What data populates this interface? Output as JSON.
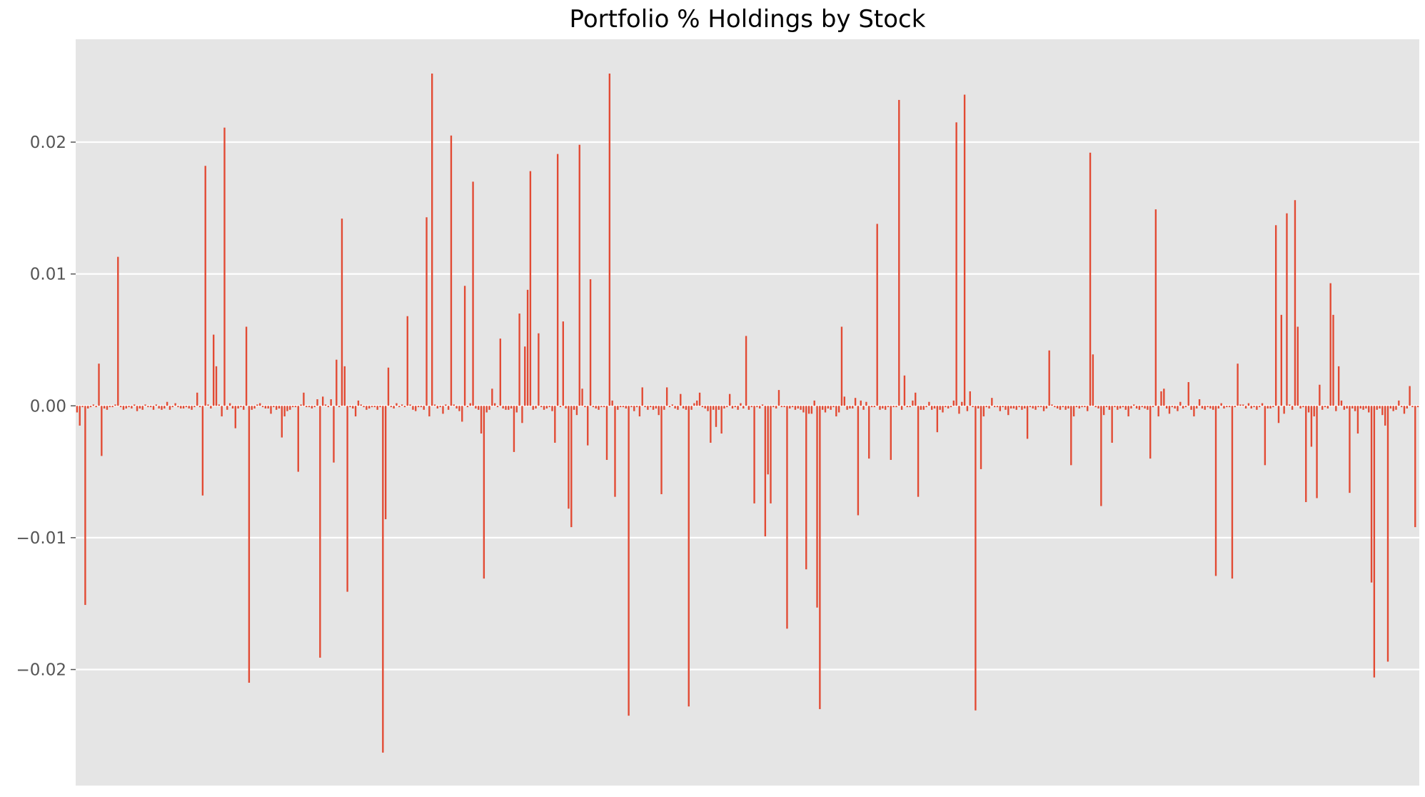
{
  "chart_data": {
    "type": "bar",
    "title": "Portfolio % Holdings by Stock",
    "xlabel": "",
    "ylabel": "",
    "ylim": [
      -0.0288,
      0.0278
    ],
    "yticks": [
      {
        "value": 0.02,
        "label": "0.02"
      },
      {
        "value": 0.01,
        "label": "0.01"
      },
      {
        "value": 0.0,
        "label": "0.00"
      },
      {
        "value": -0.01,
        "label": "−0.01"
      },
      {
        "value": -0.02,
        "label": "−0.02"
      }
    ],
    "grid": true,
    "legend": "none",
    "colors": {
      "bar": "#e24a33",
      "plot_background": "#e5e5e5",
      "grid": "#ffffff",
      "page_background": "#ffffff"
    },
    "series": [
      {
        "values": [
          -0.0005,
          -0.0015,
          -0.0001,
          -0.0151,
          -0.0002,
          -0.0001,
          0.0001,
          -0.0001,
          0.0032,
          -0.0038,
          -0.0002,
          -0.0003,
          -0.0001,
          -0.0001,
          0.0001,
          0.0113,
          -0.0001,
          -0.0003,
          -0.0002,
          -0.0001,
          -0.0002,
          0.0001,
          -0.0004,
          -0.0002,
          -0.0003,
          0.0001,
          -0.0001,
          -0.0001,
          -0.0003,
          0.0001,
          -0.0002,
          -0.0003,
          -0.0002,
          0.0003,
          -0.0003,
          -0.0001,
          0.0002,
          -0.0001,
          -0.0002,
          -0.0002,
          -0.0001,
          -0.0002,
          -0.0003,
          -0.0001,
          0.001,
          -0.0001,
          -0.0068,
          0.0182,
          0.0001,
          -0.0002,
          0.0054,
          0.003,
          0.0001,
          -0.0008,
          0.0211,
          -0.0003,
          0.0002,
          -0.0002,
          -0.0017,
          -0.0002,
          -0.0001,
          -0.0003,
          0.006,
          -0.021,
          -0.0003,
          -0.0002,
          0.0001,
          0.0002,
          -0.0001,
          -0.0002,
          -0.0002,
          -0.0006,
          -0.0001,
          -0.0003,
          -0.0002,
          -0.0024,
          -0.0008,
          -0.0004,
          -0.0003,
          -0.0001,
          -0.0001,
          -0.005,
          0.0001,
          0.001,
          -0.0001,
          -0.0001,
          -0.0002,
          -0.0001,
          0.0005,
          -0.0191,
          0.0007,
          0.0001,
          -0.0001,
          0.0005,
          -0.0043,
          0.0035,
          -0.0001,
          0.0142,
          0.003,
          -0.0141,
          -0.0001,
          -0.0002,
          -0.0008,
          0.0004,
          0.0001,
          -0.0001,
          -0.0003,
          -0.0002,
          -0.0001,
          -0.0001,
          -0.0003,
          -0.0001,
          -0.0263,
          -0.0086,
          0.0029,
          -0.0001,
          -0.0002,
          0.0002,
          -0.0001,
          0.0001,
          -0.0001,
          0.0068,
          0.0001,
          -0.0003,
          -0.0004,
          -0.0001,
          -0.0001,
          -0.0003,
          0.0143,
          -0.0008,
          0.0252,
          0.0001,
          -0.0002,
          -0.0001,
          -0.0006,
          0.0001,
          -0.0003,
          0.0205,
          0.0001,
          -0.0002,
          -0.0004,
          -0.0012,
          0.0091,
          -0.0001,
          0.0002,
          0.017,
          -0.0002,
          -0.0003,
          -0.0021,
          -0.0131,
          -0.0005,
          -0.0003,
          0.0013,
          0.0002,
          -0.0001,
          0.0051,
          -0.0002,
          -0.0003,
          -0.0003,
          -0.0002,
          -0.0035,
          -0.0005,
          0.007,
          -0.0013,
          0.0045,
          0.0088,
          0.0178,
          -0.0003,
          -0.0002,
          0.0055,
          -0.0001,
          -0.0003,
          -0.0002,
          -0.0001,
          -0.0004,
          -0.0028,
          0.0191,
          -0.0001,
          0.0064,
          -0.0002,
          -0.0078,
          -0.0092,
          -0.0003,
          -0.0007,
          0.0198,
          0.0013,
          -0.0001,
          -0.003,
          0.0096,
          -0.0001,
          -0.0002,
          -0.0003,
          -0.0001,
          -0.0001,
          -0.0041,
          0.0252,
          0.0004,
          -0.0069,
          -0.0003,
          -0.0001,
          -0.0001,
          -0.0002,
          -0.0235,
          -0.0001,
          -0.0004,
          -0.0001,
          -0.0008,
          0.0014,
          -0.0001,
          -0.0003,
          -0.0001,
          -0.0003,
          -0.0002,
          -0.0007,
          -0.0067,
          -0.0003,
          0.0014,
          -0.0001,
          0.0001,
          -0.0002,
          -0.0003,
          0.0009,
          -0.0002,
          -0.0003,
          -0.0228,
          -0.0003,
          0.0002,
          0.0004,
          0.001,
          -0.0001,
          -0.0002,
          -0.0004,
          -0.0028,
          -0.0003,
          -0.0016,
          -0.0003,
          -0.0021,
          -0.0002,
          -0.0001,
          0.0009,
          -0.0002,
          -0.0001,
          -0.0003,
          0.0002,
          -0.0002,
          0.0053,
          -0.0003,
          -0.0001,
          -0.0074,
          -0.0001,
          -0.0002,
          0.0001,
          -0.0099,
          -0.0052,
          -0.0074,
          -0.0001,
          -0.0002,
          0.0012,
          -0.0001,
          -0.0001,
          -0.0169,
          -0.0002,
          -0.0001,
          -0.0003,
          -0.0002,
          -0.0003,
          -0.0005,
          -0.0124,
          -0.0006,
          -0.0006,
          0.0004,
          -0.0153,
          -0.023,
          -0.0003,
          -0.0005,
          -0.0002,
          -0.0003,
          -0.0001,
          -0.0008,
          -0.0005,
          0.006,
          0.0007,
          -0.0003,
          -0.0002,
          -0.0002,
          0.0006,
          -0.0083,
          0.0004,
          -0.0003,
          0.0003,
          -0.004,
          -0.0001,
          -0.0001,
          0.0138,
          -0.0003,
          -0.0002,
          -0.0003,
          -0.0001,
          -0.0041,
          -0.0001,
          -0.0001,
          0.0232,
          -0.0003,
          0.0023,
          -0.0001,
          -0.0001,
          0.0004,
          0.001,
          -0.0069,
          -0.0003,
          -0.0003,
          -0.0001,
          0.0003,
          -0.0003,
          -0.0002,
          -0.002,
          -0.0003,
          -0.0005,
          -0.0001,
          -0.0002,
          -0.0001,
          0.0004,
          0.0215,
          -0.0006,
          0.0003,
          0.0236,
          -0.0004,
          0.0011,
          -0.0001,
          -0.0231,
          -0.0002,
          -0.0048,
          -0.0008,
          -0.0001,
          -0.0002,
          0.0006,
          -0.0001,
          -0.0001,
          -0.0004,
          -0.0001,
          -0.0003,
          -0.0007,
          -0.0002,
          -0.0002,
          -0.0003,
          -0.0001,
          -0.0003,
          -0.0002,
          -0.0025,
          -0.0001,
          -0.0002,
          -0.0003,
          -0.0001,
          -0.0001,
          -0.0004,
          -0.0002,
          0.0042,
          0.0001,
          -0.0001,
          -0.0002,
          -0.0003,
          -0.0001,
          -0.0003,
          -0.0002,
          -0.0045,
          -0.0008,
          -0.0001,
          -0.0002,
          -0.0001,
          -0.0001,
          -0.0004,
          0.0192,
          0.0039,
          -0.0001,
          -0.0002,
          -0.0076,
          -0.0007,
          -0.0001,
          -0.0003,
          -0.0028,
          -0.0001,
          -0.0003,
          -0.0002,
          -0.0001,
          -0.0003,
          -0.0008,
          -0.0002,
          0.0001,
          -0.0002,
          -0.0003,
          -0.0001,
          -0.0002,
          -0.0003,
          -0.004,
          -0.0001,
          0.0149,
          -0.0008,
          0.0011,
          0.0013,
          -0.0002,
          -0.0006,
          -0.0001,
          -0.0002,
          -0.0004,
          0.0003,
          -0.0002,
          -0.0001,
          0.0018,
          -0.0003,
          -0.0008,
          -0.0002,
          0.0005,
          -0.0002,
          -0.0003,
          -0.0001,
          -0.0002,
          -0.0003,
          -0.0129,
          -0.0002,
          0.0002,
          -0.0002,
          -0.0001,
          -0.0001,
          -0.0131,
          -0.0001,
          0.0032,
          0.0001,
          0.0001,
          -0.0002,
          0.0002,
          -0.0002,
          -0.0001,
          -0.0003,
          -0.0001,
          0.0002,
          -0.0045,
          -0.0002,
          -0.0002,
          -0.0001,
          0.0137,
          -0.0013,
          0.0069,
          -0.0006,
          0.0146,
          0.0001,
          -0.0003,
          0.0156,
          0.006,
          -0.0002,
          -0.0001,
          -0.0073,
          -0.0005,
          -0.0031,
          -0.0008,
          -0.007,
          0.0016,
          -0.0003,
          -0.0001,
          -0.0002,
          0.0093,
          0.0069,
          -0.0004,
          0.003,
          0.0004,
          -0.0003,
          -0.0002,
          -0.0066,
          -0.0002,
          -0.0004,
          -0.0021,
          -0.0002,
          -0.0003,
          -0.0002,
          -0.0005,
          -0.0134,
          -0.0206,
          -0.0003,
          -0.0002,
          -0.0007,
          -0.0015,
          -0.0194,
          -0.0002,
          -0.0004,
          -0.0003,
          0.0004,
          -0.0001,
          -0.0006,
          -0.0002,
          0.0015,
          -0.0001,
          -0.0092,
          -0.0001
        ]
      }
    ]
  }
}
